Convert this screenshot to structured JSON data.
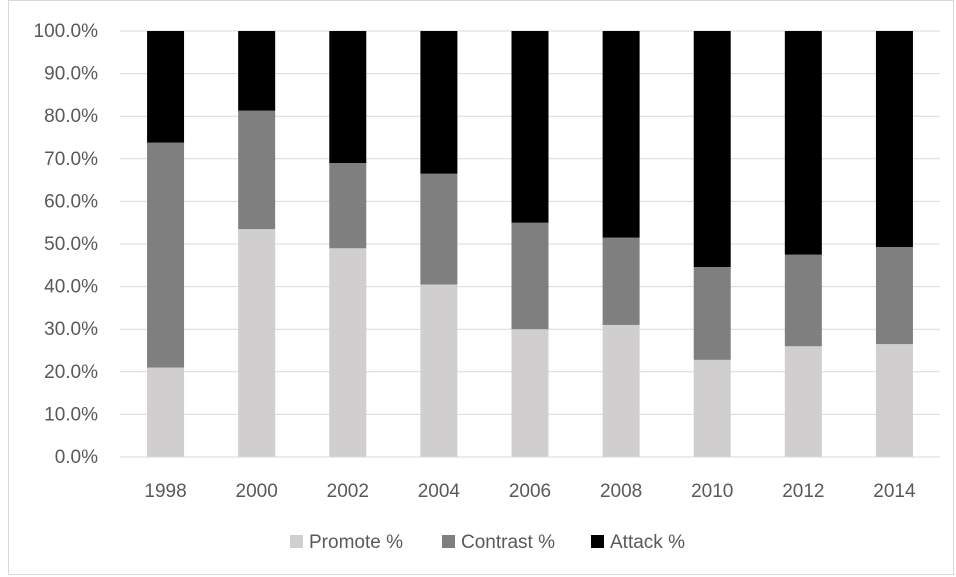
{
  "chart_data": {
    "type": "bar",
    "stacked": true,
    "categories": [
      "1998",
      "2000",
      "2002",
      "2004",
      "2006",
      "2008",
      "2010",
      "2012",
      "2014"
    ],
    "series": [
      {
        "name": "Promote %",
        "color": "#d0cece",
        "values": [
          21.0,
          53.5,
          49.0,
          40.5,
          30.0,
          31.0,
          22.8,
          26.0,
          26.5
        ]
      },
      {
        "name": "Contrast %",
        "color": "#7f7f7f",
        "values": [
          52.8,
          27.8,
          20.0,
          26.0,
          25.0,
          20.5,
          21.8,
          21.5,
          22.8
        ]
      },
      {
        "name": "Attack %",
        "color": "#000000",
        "values": [
          26.2,
          18.7,
          31.0,
          33.5,
          45.0,
          48.5,
          55.4,
          52.5,
          50.7
        ]
      }
    ],
    "y_ticks": [
      "0.0%",
      "10.0%",
      "20.0%",
      "30.0%",
      "40.0%",
      "50.0%",
      "60.0%",
      "70.0%",
      "80.0%",
      "90.0%",
      "100.0%"
    ],
    "ylim": [
      0,
      100
    ],
    "grid": true,
    "legend_position": "bottom",
    "title": "",
    "xlabel": "",
    "ylabel": ""
  }
}
